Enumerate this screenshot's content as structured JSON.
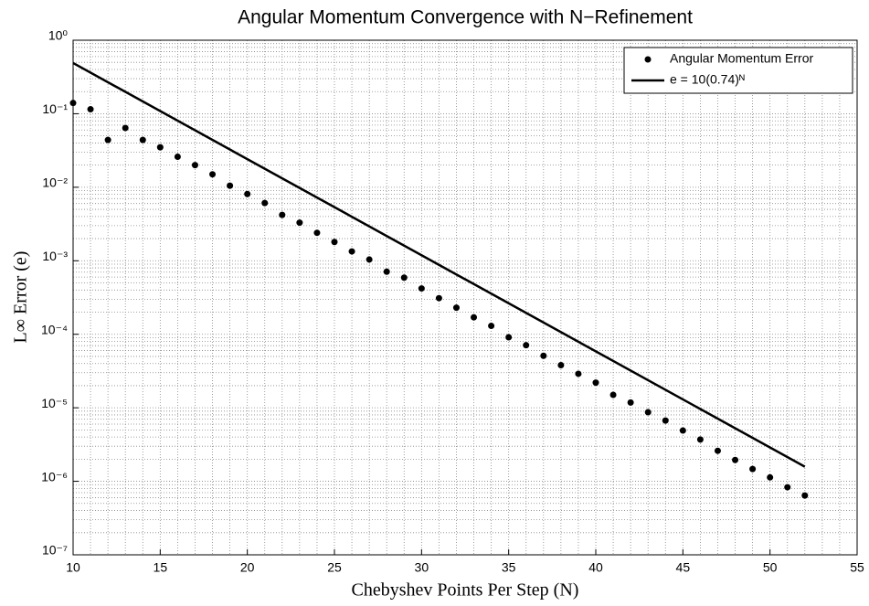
{
  "chart_data": {
    "type": "scatter",
    "title": "Angular Momentum Convergence with N−Refinement",
    "xlabel": "Chebyshev Points Per Step (N)",
    "ylabel": "L∞ Error (e)",
    "yscale": "log",
    "grid": true,
    "legend": "upper right",
    "xlim": [
      10,
      55
    ],
    "xticks": [
      10,
      15,
      20,
      25,
      30,
      35,
      40,
      45,
      50,
      55
    ],
    "ylim": [
      1e-07,
      1
    ],
    "yticks": [
      {
        "value": 1e-07,
        "label": "10⁻⁷"
      },
      {
        "value": 1e-06,
        "label": "10⁻⁶"
      },
      {
        "value": 1e-05,
        "label": "10⁻⁵"
      },
      {
        "value": 0.0001,
        "label": "10⁻⁴"
      },
      {
        "value": 0.001,
        "label": "10⁻³"
      },
      {
        "value": 0.01,
        "label": "10⁻²"
      },
      {
        "value": 0.1,
        "label": "10⁻¹"
      },
      {
        "value": 1,
        "label": "10⁰"
      }
    ],
    "series": [
      {
        "name": "Angular Momentum Error",
        "type": "scatter",
        "color": "#000000",
        "x": [
          10,
          11,
          12,
          13,
          14,
          15,
          16,
          17,
          18,
          19,
          20,
          21,
          22,
          23,
          24,
          25,
          26,
          27,
          28,
          29,
          30,
          31,
          32,
          33,
          34,
          35,
          36,
          37,
          38,
          39,
          40,
          41,
          42,
          43,
          44,
          45,
          46,
          47,
          48,
          49,
          50,
          51,
          52
        ],
        "values": [
          0.14,
          0.115,
          0.044,
          0.064,
          0.044,
          0.035,
          0.026,
          0.02,
          0.015,
          0.0105,
          0.0081,
          0.0061,
          0.0042,
          0.0033,
          0.0024,
          0.0018,
          0.00134,
          0.00104,
          0.00071,
          0.00059,
          0.00042,
          0.00031,
          0.00023,
          0.00017,
          0.00013,
          9.1e-05,
          7.1e-05,
          5.1e-05,
          3.8e-05,
          2.9e-05,
          2.2e-05,
          1.5e-05,
          1.18e-05,
          8.7e-06,
          6.7e-06,
          4.9e-06,
          3.7e-06,
          2.6e-06,
          1.95e-06,
          1.47e-06,
          1.13e-06,
          8.3e-07,
          6.4e-07
        ]
      },
      {
        "name": "e = 10(0.74)ᴺ",
        "type": "line",
        "color": "#000000",
        "x": [
          10,
          52
        ],
        "values": [
          0.49,
          1.58e-06
        ]
      }
    ]
  }
}
